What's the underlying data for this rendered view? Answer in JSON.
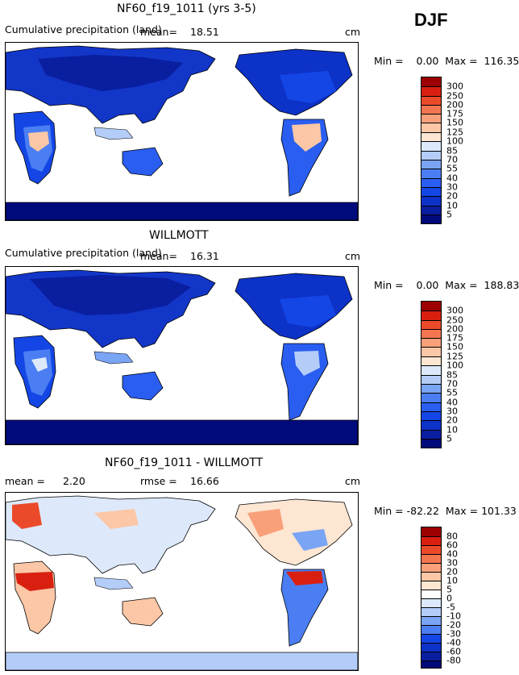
{
  "season": "DJF",
  "units": "cm",
  "panels": [
    {
      "title": "NF60_f19_1011 (yrs 3-5)",
      "subtitle": "Cumulative precipitation (land)",
      "mean_label": "mean=",
      "mean_value": "18.51",
      "units": "cm",
      "stats": "Min =    0.00  Max =  116.35",
      "palette": "abs"
    },
    {
      "title": "WILLMOTT",
      "subtitle": "Cumulative precipitation (land)",
      "mean_label": "mean=",
      "mean_value": "16.31",
      "units": "cm",
      "stats": "Min =    0.00  Max =  188.83",
      "palette": "abs"
    },
    {
      "title": "NF60_f19_1011 - WILLMOTT",
      "mean_label": "mean =",
      "mean_value": "2.20",
      "rmse_label": "rmse =",
      "rmse_value": "16.66",
      "units": "cm",
      "stats": "Min = -82.22  Max = 101.33",
      "palette": "diff"
    }
  ],
  "chart_data": [
    {
      "type": "heatmap",
      "title": "NF60_f19_1011 (yrs 3-5)",
      "subtitle": "Cumulative precipitation (land)",
      "season": "DJF",
      "mean": 18.51,
      "min": 0.0,
      "max": 116.35,
      "units": "cm",
      "colorbar_levels": [
        5,
        10,
        20,
        30,
        40,
        55,
        70,
        85,
        100,
        125,
        150,
        175,
        200,
        250,
        300
      ],
      "colors": [
        "#000a7a",
        "#0a1ea0",
        "#0d32c8",
        "#1446e6",
        "#2a5ef0",
        "#4a7ef2",
        "#7aa4f4",
        "#b4cdf8",
        "#dde9fb",
        "#fde6d2",
        "#fbc7a6",
        "#f8a07a",
        "#f37650",
        "#eb4a2a",
        "#d92010",
        "#9c0000"
      ]
    },
    {
      "type": "heatmap",
      "title": "WILLMOTT",
      "subtitle": "Cumulative precipitation (land)",
      "season": "DJF",
      "mean": 16.31,
      "min": 0.0,
      "max": 188.83,
      "units": "cm",
      "colorbar_levels": [
        5,
        10,
        20,
        30,
        40,
        55,
        70,
        85,
        100,
        125,
        150,
        175,
        200,
        250,
        300
      ],
      "colors": [
        "#000a7a",
        "#0a1ea0",
        "#0d32c8",
        "#1446e6",
        "#2a5ef0",
        "#4a7ef2",
        "#7aa4f4",
        "#b4cdf8",
        "#dde9fb",
        "#fde6d2",
        "#fbc7a6",
        "#f8a07a",
        "#f37650",
        "#eb4a2a",
        "#d92010",
        "#9c0000"
      ]
    },
    {
      "type": "heatmap",
      "title": "NF60_f19_1011 - WILLMOTT",
      "season": "DJF",
      "mean": 2.2,
      "rmse": 16.66,
      "min": -82.22,
      "max": 101.33,
      "units": "cm",
      "colorbar_levels": [
        -80,
        -60,
        -40,
        -30,
        -20,
        -10,
        -5,
        0,
        5,
        10,
        20,
        30,
        40,
        60,
        80
      ],
      "colors": [
        "#000a7a",
        "#0a1ea0",
        "#0d32c8",
        "#1446e6",
        "#2a5ef0",
        "#4a7ef2",
        "#7aa4f4",
        "#b4cdf8",
        "#dde9fb",
        "#fde6d2",
        "#fbc7a6",
        "#f8a07a",
        "#f37650",
        "#eb4a2a",
        "#d92010",
        "#9c0000"
      ]
    }
  ]
}
